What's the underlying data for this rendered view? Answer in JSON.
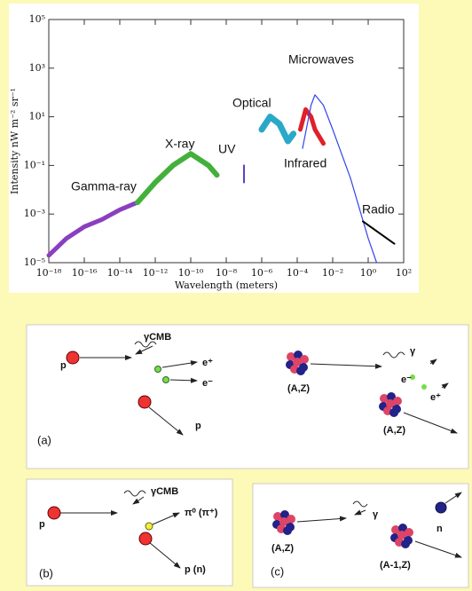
{
  "chart_data": {
    "type": "line",
    "log_x": true,
    "log_y": true,
    "xlabel": "Wavelength (meters)",
    "ylabel": "Intensity nW m⁻² sr⁻¹",
    "xlim": [
      1e-18,
      100
    ],
    "ylim": [
      1e-05,
      100000
    ],
    "xticks": [
      {
        "value": 1e-18,
        "label": "10⁻¹⁸"
      },
      {
        "value": 1e-16,
        "label": "10⁻¹⁶"
      },
      {
        "value": 1e-14,
        "label": "10⁻¹⁴"
      },
      {
        "value": 1e-12,
        "label": "10⁻¹²"
      },
      {
        "value": 1e-10,
        "label": "10⁻¹⁰"
      },
      {
        "value": 1e-08,
        "label": "10⁻⁸"
      },
      {
        "value": 1e-06,
        "label": "10⁻⁶"
      },
      {
        "value": 0.0001,
        "label": "10⁻⁴"
      },
      {
        "value": 0.01,
        "label": "10⁻²"
      },
      {
        "value": 1,
        "label": "10⁰"
      },
      {
        "value": 100,
        "label": "10²"
      }
    ],
    "yticks": [
      {
        "value": 1e-05,
        "label": "10⁻⁵"
      },
      {
        "value": 0.001,
        "label": "10⁻³"
      },
      {
        "value": 0.1,
        "label": "10⁻¹"
      },
      {
        "value": 10,
        "label": "10¹"
      },
      {
        "value": 1000,
        "label": "10³"
      },
      {
        "value": 100000,
        "label": "10⁵"
      }
    ],
    "series": [
      {
        "name": "Gamma-ray",
        "color": "#8a3fc0",
        "x": [
          1e-18,
          1e-17,
          1e-16,
          1e-15,
          1e-14,
          1e-13
        ],
        "values": [
          2e-05,
          0.0001,
          0.0003,
          0.0006,
          0.0015,
          0.003
        ]
      },
      {
        "name": "X-ray",
        "color": "#44b03c",
        "x": [
          1e-13,
          1e-12,
          1e-11,
          1e-10,
          1e-09,
          3e-09
        ],
        "values": [
          0.003,
          0.02,
          0.1,
          0.3,
          0.1,
          0.04
        ]
      },
      {
        "name": "UV",
        "color": "#6040c0",
        "x": [
          1e-07,
          1e-07
        ],
        "values": [
          0.02,
          0.1
        ]
      },
      {
        "name": "Optical",
        "color": "#2aa8c8",
        "x": [
          1e-06,
          3e-06,
          1e-05,
          3e-05,
          6e-05
        ],
        "values": [
          3,
          10,
          5,
          1,
          2
        ]
      },
      {
        "name": "Infrared",
        "color": "#e0202a",
        "x": [
          0.00015,
          0.0003,
          0.0006,
          0.001,
          0.003
        ],
        "values": [
          3,
          20,
          10,
          3,
          0.8
        ]
      },
      {
        "name": "Microwaves",
        "color": "#3344ee",
        "x": [
          0.0002,
          0.0006,
          0.001,
          0.003,
          0.01,
          0.1,
          1,
          3
        ],
        "values": [
          0.5,
          30,
          80,
          30,
          3,
          0.03,
          0.0001,
          1e-05
        ]
      },
      {
        "name": "Radio",
        "color": "#000000",
        "x": [
          0.5,
          30
        ],
        "values": [
          0.0005,
          6e-05
        ]
      }
    ]
  },
  "diagrams": [
    {
      "label": "(a)",
      "texts": [
        "p",
        "γCMB",
        "e⁺",
        "e⁻",
        "p",
        "(A,Z)",
        "γ",
        "e⁻",
        "e⁺",
        "(A,Z)"
      ]
    },
    {
      "label": "(b)",
      "texts": [
        "p",
        "γCMB",
        "π⁰  (π⁺)",
        "p (n)"
      ]
    },
    {
      "label": "(c)",
      "texts": [
        "(A,Z)",
        "γ",
        "(A-1,Z)",
        "n"
      ]
    }
  ]
}
